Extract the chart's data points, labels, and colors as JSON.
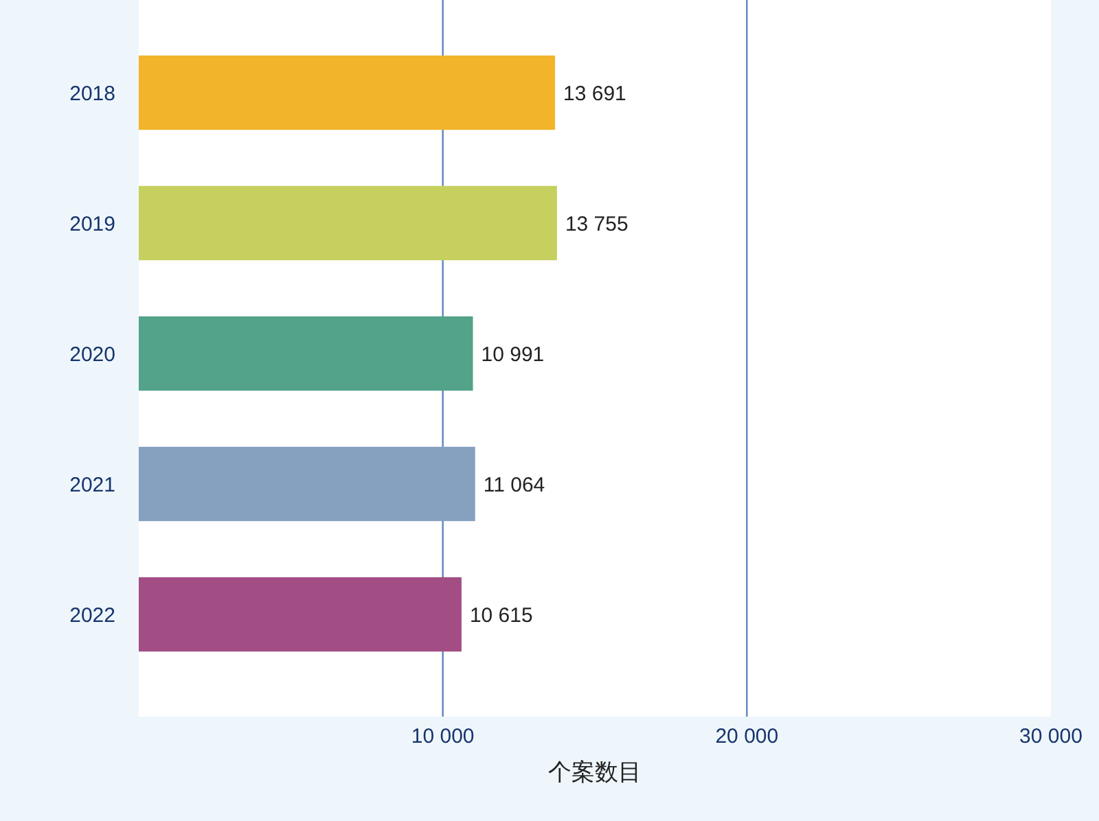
{
  "chart_data": {
    "type": "bar",
    "orientation": "horizontal",
    "xlabel": "个案数目",
    "categories": [
      "2018",
      "2019",
      "2020",
      "2021",
      "2022"
    ],
    "values": [
      13691,
      13755,
      10991,
      11064,
      10615
    ],
    "value_labels": [
      "13 691",
      "13 755",
      "10 991",
      "11 064",
      "10 615"
    ],
    "colors": [
      "#f1b42a",
      "#c6d05e",
      "#53a28a",
      "#86a0c0",
      "#a24e84"
    ],
    "xlim": [
      0,
      30000
    ],
    "xticks": [
      {
        "value": 10000,
        "label": "10 000"
      },
      {
        "value": 20000,
        "label": "20 000"
      },
      {
        "value": 30000,
        "label": "30 000"
      }
    ],
    "grid": "x"
  }
}
